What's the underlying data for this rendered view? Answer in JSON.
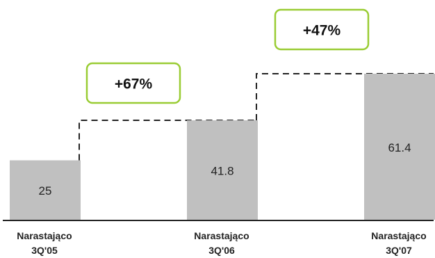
{
  "chart_data": {
    "type": "bar",
    "title": "",
    "xlabel": "",
    "ylabel": "",
    "categories": [
      [
        "Narastająco",
        "3Q'05"
      ],
      [
        "Narastająco",
        "3Q'06"
      ],
      [
        "Narastająco",
        "3Q'07"
      ]
    ],
    "values": [
      25,
      41.8,
      61.4
    ],
    "value_labels": [
      "25",
      "41.8",
      "61.4"
    ],
    "ylim": [
      0,
      70
    ],
    "grid": false,
    "legend": "none",
    "growth_annotations": [
      {
        "from": 0,
        "to": 1,
        "label": "+67%"
      },
      {
        "from": 1,
        "to": 2,
        "label": "+47%"
      }
    ],
    "colors": {
      "bar": "#c0c0c0",
      "annotation_border": "#99cc33",
      "connector": "#222222",
      "axis": "#222222"
    }
  }
}
